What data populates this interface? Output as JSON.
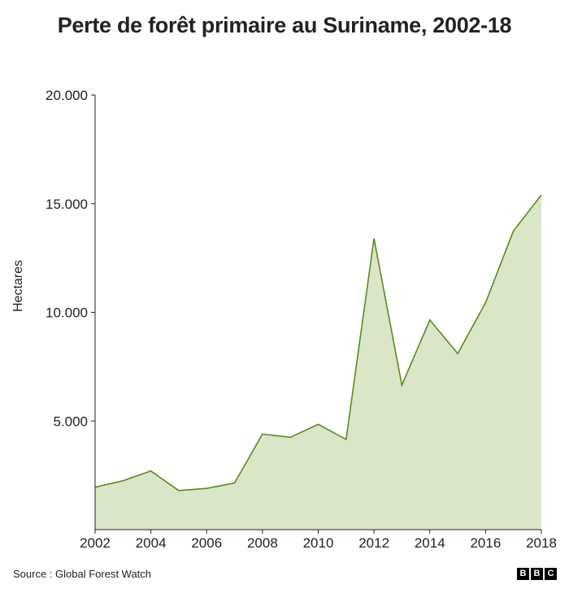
{
  "title": "Perte de forêt primaire au Suriname, 2002-18",
  "source": "Source : Global Forest Watch",
  "logo": [
    "B",
    "B",
    "C"
  ],
  "colors": {
    "line": "#5a8a1f",
    "fill": "#dae6c8",
    "axis": "#222222"
  },
  "chart_data": {
    "type": "area",
    "title": "Perte de forêt primaire au Suriname, 2002-18",
    "xlabel": "",
    "ylabel": "Hectares",
    "x": [
      2002,
      2003,
      2004,
      2005,
      2006,
      2007,
      2008,
      2009,
      2010,
      2011,
      2012,
      2013,
      2014,
      2015,
      2016,
      2017,
      2018
    ],
    "values": [
      1950,
      2250,
      2700,
      1800,
      1900,
      2150,
      4400,
      4250,
      4850,
      4150,
      13400,
      6650,
      9650,
      8100,
      10450,
      13750,
      15400
    ],
    "ylim": [
      0,
      20000
    ],
    "yticks": [
      5000,
      10000,
      15000,
      20000
    ],
    "ytick_labels": [
      "5.000",
      "10.000",
      "15.000",
      "20.000"
    ],
    "xticks": [
      2002,
      2004,
      2006,
      2008,
      2010,
      2012,
      2014,
      2016,
      2018
    ],
    "xtick_labels": [
      "2002",
      "2004",
      "2006",
      "2008",
      "2010",
      "2012",
      "2014",
      "2016",
      "2018"
    ],
    "grid": false,
    "legend": null
  }
}
